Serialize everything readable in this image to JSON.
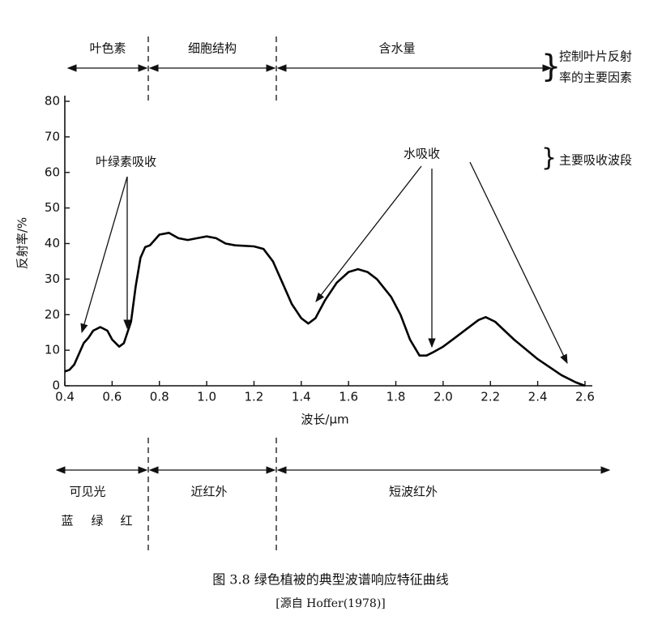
{
  "chart_data": {
    "type": "line",
    "xlabel": "波长/μm",
    "ylabel": "反射率/%",
    "xlim": [
      0.4,
      2.63
    ],
    "ylim": [
      0,
      80
    ],
    "xticks": [
      0.4,
      0.6,
      0.8,
      {
        "value": 1,
        "label": "1.0"
      },
      1.2,
      1.4,
      1.6,
      1.8,
      {
        "value": 2,
        "label": "2.0"
      },
      2.2,
      2.4,
      2.6
    ],
    "yticks": [
      0,
      10,
      20,
      30,
      40,
      50,
      60,
      70,
      80
    ],
    "series": [
      {
        "color": "#000000",
        "x": [
          0.4,
          0.42,
          0.44,
          0.46,
          0.48,
          0.5,
          0.52,
          0.55,
          0.58,
          0.6,
          0.63,
          0.65,
          0.68,
          0.7,
          0.72,
          0.74,
          0.76,
          0.78,
          0.8,
          0.84,
          0.88,
          0.92,
          0.96,
          1.0,
          1.04,
          1.08,
          1.12,
          1.2,
          1.24,
          1.28,
          1.32,
          1.36,
          1.4,
          1.43,
          1.46,
          1.5,
          1.55,
          1.6,
          1.64,
          1.68,
          1.72,
          1.78,
          1.82,
          1.86,
          1.9,
          1.93,
          1.96,
          2.0,
          2.05,
          2.1,
          2.15,
          2.18,
          2.22,
          2.3,
          2.4,
          2.5,
          2.56,
          2.6
        ],
        "values": [
          4,
          4.5,
          6,
          9,
          12,
          13.5,
          15.5,
          16.5,
          15.5,
          13,
          11,
          12,
          18,
          28,
          36,
          39,
          39.5,
          41,
          42.5,
          43,
          41.5,
          41,
          41.5,
          42,
          41.5,
          40,
          39.5,
          39.2,
          38.5,
          35,
          29,
          23,
          19,
          17.5,
          19,
          24,
          29,
          32,
          32.8,
          32,
          30,
          25,
          20,
          13,
          8.5,
          8.5,
          9.5,
          11,
          13.5,
          16,
          18.5,
          19.3,
          18,
          13,
          7.5,
          3,
          1,
          0
        ]
      }
    ],
    "annotations": {
      "top_pigment": "叶色素",
      "top_cell": "细胞结构",
      "top_water": "含水量",
      "top_factor": [
        "控制叶片反射",
        "率的主要因素"
      ],
      "chlorophyll": "叶绿素吸收",
      "water_abs": "水吸收",
      "main_band": "主要吸收波段",
      "visible": "可见光",
      "nir": "近红外",
      "swir": "短波红外",
      "blue": "蓝",
      "green": "绿",
      "red": "红"
    },
    "caption": "图 3.8  绿色植被的典型波谱响应特征曲线",
    "source": "[源自 Hoffer(1978)]"
  }
}
